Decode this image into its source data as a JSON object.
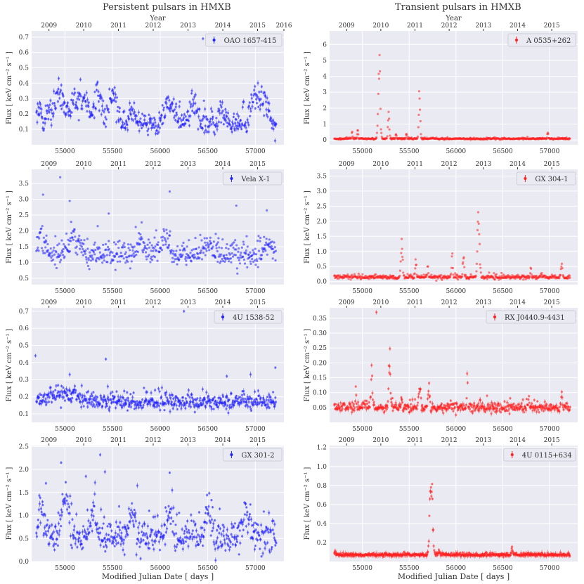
{
  "figure": {
    "left_title": "Persistent pulsars in HMXB",
    "right_title": "Transient pulsars in HMXB",
    "xlabel": "Modified Julian Date [ days ]",
    "ylabel": "Flux [ keV cm⁻² s⁻¹ ]",
    "top_axis_label": "Year",
    "colors": {
      "persistent": "#1f1fff",
      "transient": "#ff1f1f",
      "panel_bg": "#eaeaf2",
      "grid": "#ffffff"
    }
  },
  "chart_data": [
    {
      "type": "scatter",
      "legend": "OAO 1657-415",
      "color": "#1f1fff",
      "column": "left",
      "row": 0,
      "xlim": [
        54650,
        57300
      ],
      "ylim": [
        0.0,
        0.74
      ],
      "xticks": [
        55000,
        55500,
        56000,
        56500,
        57000
      ],
      "yticks": [
        0.1,
        0.2,
        0.3,
        0.4,
        0.5,
        0.6,
        0.7
      ],
      "top_ticks": [
        "2009",
        "2010",
        "2011",
        "2012",
        "2013",
        "2014",
        "2015",
        "2016"
      ],
      "baseline": 0.13,
      "spread": 0.06,
      "flares": [
        [
          54700,
          0.26,
          60
        ],
        [
          54830,
          0.22,
          40
        ],
        [
          54950,
          0.38,
          70
        ],
        [
          55100,
          0.3,
          60
        ],
        [
          55200,
          0.32,
          70
        ],
        [
          55350,
          0.36,
          60
        ],
        [
          55500,
          0.4,
          50
        ],
        [
          55700,
          0.22,
          50
        ],
        [
          56100,
          0.3,
          80
        ],
        [
          56350,
          0.28,
          60
        ],
        [
          56650,
          0.25,
          50
        ],
        [
          57000,
          0.38,
          60
        ],
        [
          57100,
          0.3,
          50
        ]
      ],
      "outliers": [
        [
          56450,
          0.69
        ]
      ],
      "errorbars": true
    },
    {
      "type": "scatter",
      "legend": "Vela X-1",
      "color": "#1f1fff",
      "column": "left",
      "row": 1,
      "xlim": [
        54650,
        57300
      ],
      "ylim": [
        0.3,
        3.95
      ],
      "xticks": [
        55000,
        55500,
        56000,
        56500,
        57000
      ],
      "yticks": [
        0.5,
        1.0,
        1.5,
        2.0,
        2.5,
        3.0,
        3.5
      ],
      "top_ticks": [
        "2009",
        "2010",
        "2011",
        "2012",
        "2013",
        "2014",
        "2015"
      ],
      "baseline": 1.25,
      "spread": 0.3,
      "flares": [
        [
          54750,
          1.9,
          60
        ],
        [
          55100,
          1.9,
          80
        ],
        [
          55800,
          1.8,
          60
        ],
        [
          56050,
          1.9,
          60
        ],
        [
          56500,
          1.8,
          60
        ],
        [
          57150,
          1.7,
          60
        ]
      ],
      "outliers": [
        [
          54950,
          3.7
        ],
        [
          54770,
          3.15
        ],
        [
          55050,
          2.95
        ],
        [
          56100,
          3.25
        ],
        [
          56800,
          2.8
        ],
        [
          57120,
          2.65
        ],
        [
          55460,
          2.55
        ]
      ],
      "errorbars": false
    },
    {
      "type": "scatter",
      "legend": "4U 1538-52",
      "color": "#1f1fff",
      "column": "left",
      "row": 2,
      "xlim": [
        54650,
        57300
      ],
      "ylim": [
        0.05,
        0.72
      ],
      "xticks": [
        55000,
        55500,
        56000,
        56500,
        57000
      ],
      "yticks": [
        0.1,
        0.2,
        0.3,
        0.4,
        0.5,
        0.6,
        0.7
      ],
      "top_ticks": [
        "2009",
        "2010",
        "2011",
        "2012",
        "2013",
        "2014",
        "2015"
      ],
      "baseline": 0.17,
      "spread": 0.035,
      "flares": [
        [
          54900,
          0.22,
          120
        ],
        [
          55100,
          0.22,
          100
        ]
      ],
      "outliers": [
        [
          54690,
          0.44
        ],
        [
          55430,
          0.42
        ],
        [
          56250,
          0.7
        ],
        [
          56700,
          0.32
        ],
        [
          56950,
          0.33
        ],
        [
          57210,
          0.37
        ],
        [
          55050,
          0.33
        ],
        [
          55450,
          0.26
        ]
      ],
      "errorbars": true
    },
    {
      "type": "scatter",
      "legend": "GX 301-2",
      "color": "#1f1fff",
      "column": "left",
      "row": 3,
      "xlim": [
        54650,
        57300
      ],
      "ylim": [
        0.0,
        2.52
      ],
      "xticks": [
        55000,
        55500,
        56000,
        56500,
        57000
      ],
      "yticks": [
        0.0,
        0.5,
        1.0,
        1.5,
        2.0,
        2.5
      ],
      "top_ticks": [
        "2009",
        "2010",
        "2011",
        "2012",
        "2013",
        "2014",
        "2015"
      ],
      "baseline": 0.55,
      "spread": 0.28,
      "flares": [
        [
          54750,
          1.3,
          40
        ],
        [
          55000,
          1.6,
          50
        ],
        [
          55300,
          1.4,
          40
        ],
        [
          55700,
          1.3,
          40
        ],
        [
          56100,
          1.2,
          40
        ],
        [
          56500,
          1.2,
          40
        ],
        [
          56900,
          1.2,
          40
        ]
      ],
      "outliers": [
        [
          54960,
          2.15
        ],
        [
          55370,
          2.32
        ],
        [
          55420,
          1.95
        ],
        [
          56100,
          1.93
        ],
        [
          55220,
          1.85
        ],
        [
          54800,
          1.7
        ],
        [
          55760,
          1.65
        ]
      ],
      "errorbars": true
    },
    {
      "type": "scatter",
      "legend": "A 0535+262",
      "color": "#ff1f1f",
      "column": "right",
      "row": 0,
      "xlim": [
        54650,
        57300
      ],
      "ylim": [
        -0.3,
        6.85
      ],
      "xticks": [
        55000,
        55500,
        56000,
        56500,
        57000
      ],
      "yticks": [
        0,
        1,
        2,
        3,
        4,
        5,
        6
      ],
      "top_ticks": [
        "2009",
        "2010",
        "2011",
        "2012",
        "2013",
        "2014",
        "2015"
      ],
      "baseline": 0.08,
      "spread": 0.04,
      "flares": [
        [
          55180,
          6.2,
          14
        ],
        [
          55280,
          1.8,
          10
        ],
        [
          55610,
          3.7,
          10
        ],
        [
          54890,
          0.7,
          6
        ],
        [
          54950,
          0.8,
          6
        ],
        [
          55360,
          0.5,
          6
        ],
        [
          55470,
          0.5,
          6
        ],
        [
          56980,
          0.6,
          6
        ]
      ],
      "outliers": [],
      "errorbars": false
    },
    {
      "type": "scatter",
      "legend": "GX 304-1",
      "color": "#ff1f1f",
      "column": "right",
      "row": 1,
      "xlim": [
        54650,
        57300
      ],
      "ylim": [
        -0.1,
        3.72
      ],
      "xticks": [
        55000,
        55500,
        56000,
        56500,
        57000
      ],
      "yticks": [
        0.0,
        0.5,
        1.0,
        1.5,
        2.0,
        2.5,
        3.0,
        3.5
      ],
      "top_ticks": [
        "2009",
        "2010",
        "2011",
        "2012",
        "2013",
        "2014",
        "2015"
      ],
      "baseline": 0.15,
      "spread": 0.05,
      "flares": [
        [
          55420,
          1.75,
          12
        ],
        [
          55570,
          0.95,
          8
        ],
        [
          55960,
          1.0,
          8
        ],
        [
          56080,
          1.2,
          8
        ],
        [
          56240,
          3.5,
          14
        ],
        [
          57130,
          0.9,
          8
        ],
        [
          56800,
          0.5,
          6
        ],
        [
          55700,
          0.6,
          6
        ]
      ],
      "outliers": [],
      "errorbars": false
    },
    {
      "type": "scatter",
      "legend": "RX J0440.9-4431",
      "color": "#ff1f1f",
      "column": "right",
      "row": 2,
      "xlim": [
        54650,
        57300
      ],
      "ylim": [
        0.0,
        0.385
      ],
      "xticks": [
        55000,
        55500,
        56000,
        56500,
        57000
      ],
      "yticks": [
        0.05,
        0.1,
        0.15,
        0.2,
        0.25,
        0.3,
        0.35
      ],
      "top_ticks": [
        "2009",
        "2010",
        "2011",
        "2012",
        "2013",
        "2014",
        "2015"
      ],
      "baseline": 0.05,
      "spread": 0.012,
      "flares": [
        [
          55290,
          0.27,
          12
        ],
        [
          55100,
          0.2,
          10
        ],
        [
          55610,
          0.15,
          14
        ],
        [
          55710,
          0.14,
          14
        ],
        [
          55420,
          0.1,
          8
        ],
        [
          56780,
          0.1,
          8
        ],
        [
          57130,
          0.12,
          8
        ],
        [
          56120,
          0.19,
          6
        ],
        [
          54930,
          0.13,
          6
        ]
      ],
      "outliers": [
        [
          55150,
          0.37
        ]
      ],
      "errorbars": true
    },
    {
      "type": "scatter",
      "legend": "4U 0115+634",
      "color": "#ff1f1f",
      "column": "right",
      "row": 3,
      "xlim": [
        54650,
        57300
      ],
      "ylim": [
        0.0,
        1.22
      ],
      "xticks": [
        55000,
        55500,
        56000,
        56500,
        57000
      ],
      "yticks": [
        0.2,
        0.4,
        0.6,
        0.8,
        1.0,
        1.2
      ],
      "top_ticks": [
        "2009",
        "2010",
        "2011",
        "2012",
        "2013",
        "2014",
        "2015"
      ],
      "baseline": 0.07,
      "spread": 0.012,
      "flares": [
        [
          55735,
          1.12,
          20
        ],
        [
          55820,
          0.13,
          10
        ],
        [
          56600,
          0.17,
          8
        ],
        [
          54710,
          0.12,
          6
        ]
      ],
      "outliers": [],
      "errorbars": true
    }
  ]
}
